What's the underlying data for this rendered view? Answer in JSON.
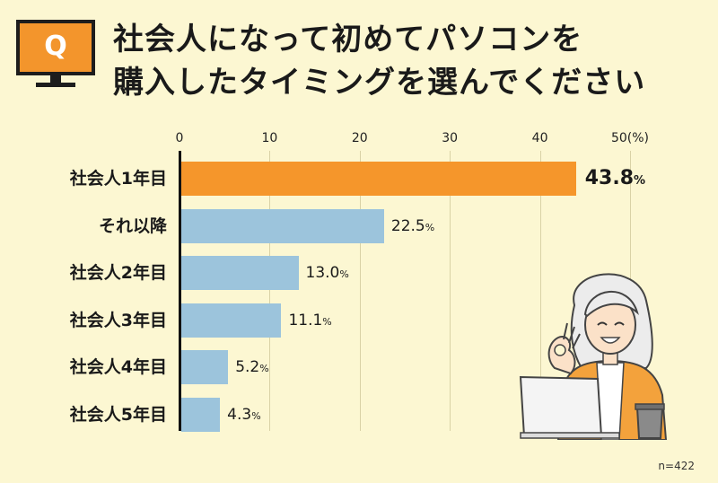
{
  "q_icon_label": "Q",
  "title": {
    "line1": "社会人になって初めてパソコンを",
    "line2": "購入したタイミングを選んでください"
  },
  "chart_data": {
    "type": "bar",
    "orientation": "horizontal",
    "categories": [
      "社会人1年目",
      "それ以降",
      "社会人2年目",
      "社会人3年目",
      "社会人4年目",
      "社会人5年目"
    ],
    "values": [
      43.8,
      22.5,
      13.0,
      11.1,
      5.2,
      4.3
    ],
    "value_labels": [
      "43.8",
      "22.5",
      "13.0",
      "11.1",
      "5.2",
      "4.3"
    ],
    "value_unit": "%",
    "ticks": [
      "0",
      "10",
      "20",
      "30",
      "40",
      "50(%)"
    ],
    "tick_values": [
      0,
      10,
      20,
      30,
      40,
      50
    ],
    "xlim": [
      0,
      50
    ],
    "grid": true,
    "colors": {
      "highlight": "#f5962b",
      "default": "#9cc4dc",
      "axis": "#111111"
    },
    "highlight_index": 0
  },
  "note": "n=422"
}
